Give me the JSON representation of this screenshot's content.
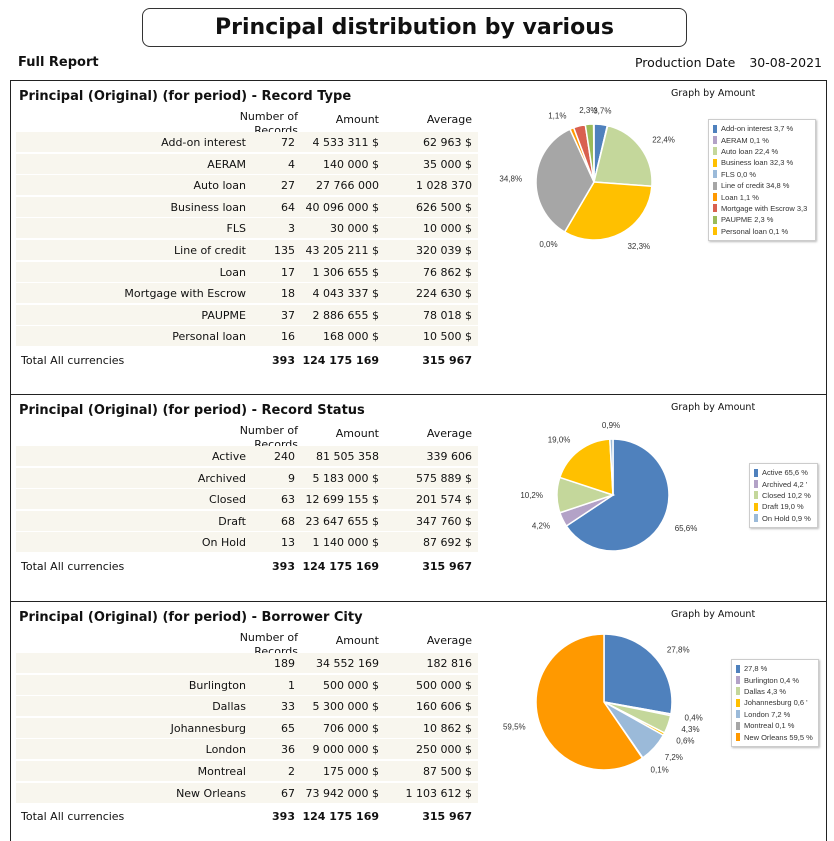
{
  "header": {
    "title": "Principal distribution by various",
    "full_report": "Full Report",
    "production_date_label": "Production Date",
    "production_date": "30-08-2021"
  },
  "table_headers": {
    "count": "Number of",
    "count2": "Records",
    "amount": "Amount",
    "average": "Average",
    "total": "Total All currencies"
  },
  "sections": [
    {
      "title": "Principal (Original) (for period) - Record Type",
      "graph_title": "Graph by Amount",
      "rows": [
        [
          "Add-on interest",
          "72",
          "4 533 311 $",
          "62 963 $"
        ],
        [
          "AERAM",
          "4",
          "140 000 $",
          "35 000 $"
        ],
        [
          "Auto loan",
          "27",
          "27 766 000",
          "1 028 370"
        ],
        [
          "Business loan",
          "64",
          "40 096 000 $",
          "626 500 $"
        ],
        [
          "FLS",
          "3",
          "30 000 $",
          "10 000 $"
        ],
        [
          "Line of credit",
          "135",
          "43 205 211 $",
          "320 039 $"
        ],
        [
          "Loan",
          "17",
          "1 306 655 $",
          "76 862 $"
        ],
        [
          "Mortgage with Escrow",
          "18",
          "4 043 337 $",
          "224 630 $"
        ],
        [
          "PAUPME",
          "37",
          "2 886 655 $",
          "78 018 $"
        ],
        [
          "Personal loan",
          "16",
          "168 000 $",
          "10 500 $"
        ]
      ],
      "total": [
        "393",
        "124 175 169",
        "315 967"
      ]
    },
    {
      "title": "Principal (Original) (for period) - Record Status",
      "graph_title": "Graph by Amount",
      "rows": [
        [
          "Active",
          "240",
          "81 505 358",
          "339 606"
        ],
        [
          "Archived",
          "9",
          "5 183 000 $",
          "575 889 $"
        ],
        [
          "Closed",
          "63",
          "12 699 155 $",
          "201 574 $"
        ],
        [
          "Draft",
          "68",
          "23 647 655 $",
          "347 760 $"
        ],
        [
          "On Hold",
          "13",
          "1 140 000 $",
          "87 692 $"
        ]
      ],
      "total": [
        "393",
        "124 175 169",
        "315 967"
      ]
    },
    {
      "title": "Principal (Original) (for period) - Borrower City",
      "graph_title": "Graph by Amount",
      "rows": [
        [
          "",
          "189",
          "34 552 169",
          "182 816"
        ],
        [
          "Burlington",
          "1",
          "500 000 $",
          "500 000 $"
        ],
        [
          "Dallas",
          "33",
          "5 300 000 $",
          "160 606 $"
        ],
        [
          "Johannesburg",
          "65",
          "706 000 $",
          "10 862 $"
        ],
        [
          "London",
          "36",
          "9 000 000 $",
          "250 000 $"
        ],
        [
          "Montreal",
          "2",
          "175 000 $",
          "87 500 $"
        ],
        [
          "New Orleans",
          "67",
          "73 942 000 $",
          "1 103 612 $"
        ]
      ],
      "total": [
        "393",
        "124 175 169",
        "315 967"
      ]
    }
  ],
  "chart_data": [
    {
      "type": "pie",
      "title": "Graph by Amount",
      "legend": "right",
      "slices": [
        {
          "name": "Add-on interest",
          "value": 3.7,
          "label": "3,7%",
          "legend": "Add-on interest 3,7 %",
          "color": "#4f81bd"
        },
        {
          "name": "AERAM",
          "value": 0.1,
          "label": "",
          "legend": "AERAM 0,1 %",
          "color": "#b3a2c7"
        },
        {
          "name": "Auto loan",
          "value": 22.4,
          "label": "22,4%",
          "legend": "Auto loan 22,4 %",
          "color": "#c4d79b"
        },
        {
          "name": "Business loan",
          "value": 32.3,
          "label": "32,3%",
          "legend": "Business loan 32,3 %",
          "color": "#ffc000"
        },
        {
          "name": "FLS",
          "value": 0.0,
          "label": "0,0%",
          "legend": "FLS 0,0 %",
          "color": "#9bbad9"
        },
        {
          "name": "Line of credit",
          "value": 34.8,
          "label": "34,8%",
          "legend": "Line of credit 34,8 %",
          "color": "#a6a6a6"
        },
        {
          "name": "Loan",
          "value": 1.1,
          "label": "1,1%",
          "legend": "Loan 1,1 %",
          "color": "#ff9900"
        },
        {
          "name": "Mortgage with Escrow",
          "value": 3.3,
          "label": "",
          "legend": "Mortgage with Escrow 3,3",
          "color": "#d9604f"
        },
        {
          "name": "PAUPME",
          "value": 2.3,
          "label": "2,3%",
          "legend": "PAUPME 2,3 %",
          "color": "#9bbb59"
        },
        {
          "name": "Personal loan",
          "value": 0.1,
          "label": "",
          "legend": "Personal loan 0,1 %",
          "color": "#ffc000"
        }
      ]
    },
    {
      "type": "pie",
      "title": "Graph by Amount",
      "legend": "right",
      "slices": [
        {
          "name": "Active",
          "value": 65.6,
          "label": "65,6%",
          "legend": "Active 65,6 %",
          "color": "#4f81bd"
        },
        {
          "name": "Archived",
          "value": 4.2,
          "label": "4,2%",
          "legend": "Archived 4,2 '",
          "color": "#b3a2c7"
        },
        {
          "name": "Closed",
          "value": 10.2,
          "label": "10,2%",
          "legend": "Closed 10,2 %",
          "color": "#c4d79b"
        },
        {
          "name": "Draft",
          "value": 19.0,
          "label": "19,0%",
          "legend": "Draft 19,0 %",
          "color": "#ffc000"
        },
        {
          "name": "On Hold",
          "value": 0.9,
          "label": "0,9%",
          "legend": "On Hold 0,9 %",
          "color": "#9bbad9"
        }
      ]
    },
    {
      "type": "pie",
      "title": "Graph by Amount",
      "legend": "right",
      "slices": [
        {
          "name": "",
          "value": 27.8,
          "label": "27,8%",
          "legend": " 27,8 %",
          "color": "#4f81bd"
        },
        {
          "name": "Burlington",
          "value": 0.4,
          "label": "0,4%",
          "legend": "Burlington 0,4 %",
          "color": "#b3a2c7"
        },
        {
          "name": "Dallas",
          "value": 4.3,
          "label": "4,3%",
          "legend": "Dallas 4,3 %",
          "color": "#c4d79b"
        },
        {
          "name": "Johannesburg",
          "value": 0.6,
          "label": "0,6%",
          "legend": "Johannesburg 0,6 '",
          "color": "#ffc000"
        },
        {
          "name": "London",
          "value": 7.2,
          "label": "7,2%",
          "legend": "London 7,2 %",
          "color": "#9bbad9"
        },
        {
          "name": "Montreal",
          "value": 0.1,
          "label": "0,1%",
          "legend": "Montreal 0,1 %",
          "color": "#a6a6a6"
        },
        {
          "name": "New Orleans",
          "value": 59.5,
          "label": "59,5%",
          "legend": "New Orleans 59,5 %",
          "color": "#ff9900"
        }
      ]
    }
  ]
}
